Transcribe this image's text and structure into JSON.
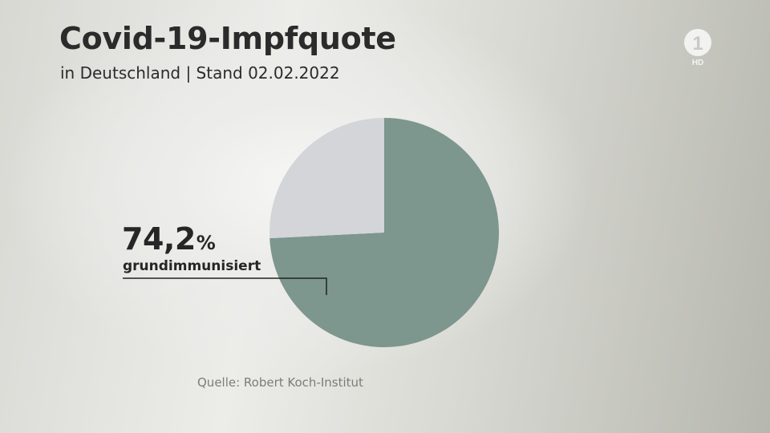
{
  "header": {
    "title": "Covid-19-Impfquote",
    "subtitle": "in Deutschland | Stand 02.02.2022"
  },
  "broadcaster": {
    "logo_text": "1",
    "hd_badge": "HD"
  },
  "callout": {
    "value": "74,2",
    "unit": "%",
    "caption": "grundimmunisiert"
  },
  "source": "Quelle: Robert Koch-Institut",
  "colors": {
    "immunised": "#7d968e",
    "remainder": "#d3d5d9",
    "text": "#2b2b2b"
  },
  "chart_data": {
    "type": "pie",
    "title": "Covid-19-Impfquote",
    "subtitle": "in Deutschland | Stand 02.02.2022",
    "unit": "%",
    "slices": [
      {
        "label": "grundimmunisiert",
        "value": 74.2,
        "color": "#7d968e"
      },
      {
        "label": "",
        "value": 25.8,
        "color": "#d3d5d9"
      }
    ]
  }
}
